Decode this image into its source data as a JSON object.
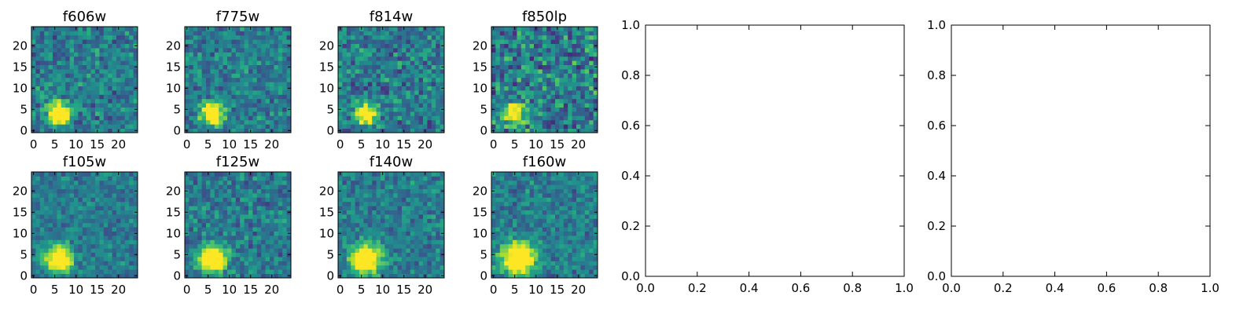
{
  "chart_data": [
    {
      "type": "heatmap",
      "title": "f606w",
      "xticks": [
        "0",
        "5",
        "10",
        "15",
        "20"
      ],
      "yticks": [
        "0",
        "5",
        "10",
        "15",
        "20"
      ],
      "xlim": [
        -0.5,
        24.5
      ],
      "ylim": [
        -0.5,
        24.5
      ],
      "source": {
        "x": 6,
        "y": 4,
        "amp": 1.0,
        "sigma": 1.8
      },
      "noise": 0.18,
      "seed": 11
    },
    {
      "type": "heatmap",
      "title": "f775w",
      "xticks": [
        "0",
        "5",
        "10",
        "15",
        "20"
      ],
      "yticks": [
        "0",
        "5",
        "10",
        "15",
        "20"
      ],
      "xlim": [
        -0.5,
        24.5
      ],
      "ylim": [
        -0.5,
        24.5
      ],
      "source": {
        "x": 6,
        "y": 4,
        "amp": 1.0,
        "sigma": 1.8
      },
      "noise": 0.17,
      "seed": 23
    },
    {
      "type": "heatmap",
      "title": "f814w",
      "xticks": [
        "0",
        "5",
        "10",
        "15",
        "20"
      ],
      "yticks": [
        "0",
        "5",
        "10",
        "15",
        "20"
      ],
      "xlim": [
        -0.5,
        24.5
      ],
      "ylim": [
        -0.5,
        24.5
      ],
      "source": {
        "x": 6,
        "y": 4,
        "amp": 0.9,
        "sigma": 1.6
      },
      "noise": 0.2,
      "seed": 37
    },
    {
      "type": "heatmap",
      "title": "f850lp",
      "xticks": [
        "0",
        "5",
        "10",
        "15",
        "20"
      ],
      "yticks": [
        "0",
        "5",
        "10",
        "15",
        "20"
      ],
      "xlim": [
        -0.5,
        24.5
      ],
      "ylim": [
        -0.5,
        24.5
      ],
      "source": {
        "x": 5,
        "y": 4,
        "amp": 0.8,
        "sigma": 1.8
      },
      "noise": 0.24,
      "seed": 41
    },
    {
      "type": "heatmap",
      "title": "f105w",
      "xticks": [
        "0",
        "5",
        "10",
        "15",
        "20"
      ],
      "yticks": [
        "0",
        "5",
        "10",
        "15",
        "20"
      ],
      "xlim": [
        -0.5,
        24.5
      ],
      "ylim": [
        -0.5,
        24.5
      ],
      "source": {
        "x": 6,
        "y": 4,
        "amp": 1.0,
        "sigma": 2.0
      },
      "noise": 0.14,
      "seed": 53
    },
    {
      "type": "heatmap",
      "title": "f125w",
      "xticks": [
        "0",
        "5",
        "10",
        "15",
        "20"
      ],
      "yticks": [
        "0",
        "5",
        "10",
        "15",
        "20"
      ],
      "xlim": [
        -0.5,
        24.5
      ],
      "ylim": [
        -0.5,
        24.5
      ],
      "source": {
        "x": 6,
        "y": 4,
        "amp": 0.9,
        "sigma": 2.2
      },
      "noise": 0.16,
      "seed": 67
    },
    {
      "type": "heatmap",
      "title": "f140w",
      "xticks": [
        "0",
        "5",
        "10",
        "15",
        "20"
      ],
      "yticks": [
        "0",
        "5",
        "10",
        "15",
        "20"
      ],
      "xlim": [
        -0.5,
        24.5
      ],
      "ylim": [
        -0.5,
        24.5
      ],
      "source": {
        "x": 6,
        "y": 4,
        "amp": 1.0,
        "sigma": 2.4
      },
      "noise": 0.15,
      "seed": 79
    },
    {
      "type": "heatmap",
      "title": "f160w",
      "xticks": [
        "0",
        "5",
        "10",
        "15",
        "20"
      ],
      "yticks": [
        "0",
        "5",
        "10",
        "15",
        "20"
      ],
      "xlim": [
        -0.5,
        24.5
      ],
      "ylim": [
        -0.5,
        24.5
      ],
      "source": {
        "x": 6,
        "y": 4,
        "amp": 1.0,
        "sigma": 2.6
      },
      "noise": 0.15,
      "seed": 97
    },
    {
      "type": "line",
      "title": "",
      "series": [],
      "xlim": [
        0.0,
        1.0
      ],
      "ylim": [
        0.0,
        1.0
      ],
      "xticks": [
        "0.0",
        "0.2",
        "0.4",
        "0.6",
        "0.8",
        "1.0"
      ],
      "yticks": [
        "0.0",
        "0.2",
        "0.4",
        "0.6",
        "0.8",
        "1.0"
      ]
    },
    {
      "type": "line",
      "title": "",
      "series": [],
      "xlim": [
        0.0,
        1.0
      ],
      "ylim": [
        0.0,
        1.0
      ],
      "xticks": [
        "0.0",
        "0.2",
        "0.4",
        "0.6",
        "0.8",
        "1.0"
      ],
      "yticks": [
        "0.0",
        "0.2",
        "0.4",
        "0.6",
        "0.8",
        "1.0"
      ]
    }
  ],
  "colormap": "viridis"
}
